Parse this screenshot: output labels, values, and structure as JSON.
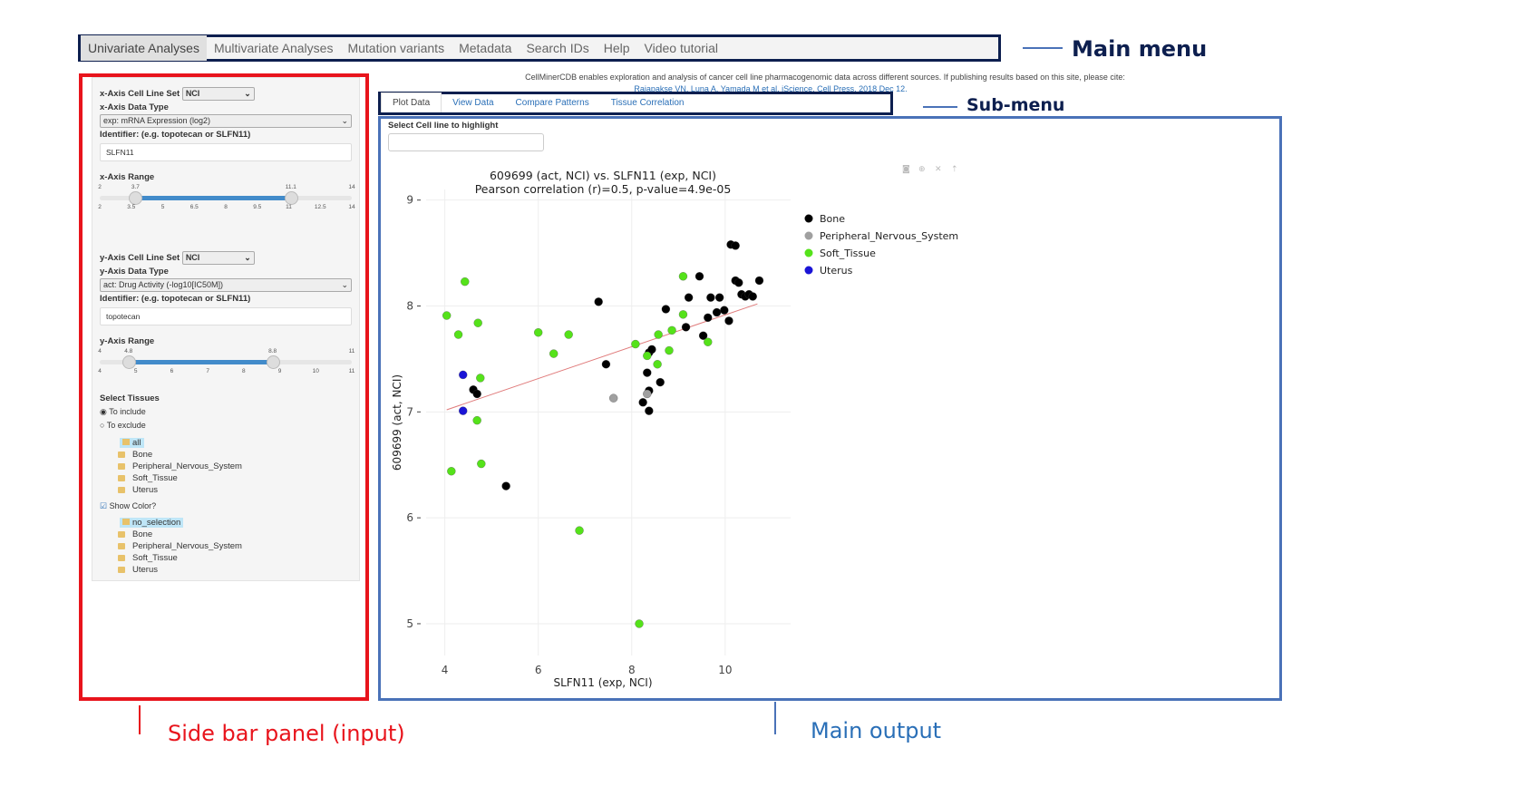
{
  "menu": {
    "items": [
      "Univariate Analyses",
      "Multivariate Analyses",
      "Mutation variants",
      "Metadata",
      "Search IDs",
      "Help",
      "Video tutorial"
    ],
    "active": 0
  },
  "annotations": {
    "main_menu": "Main menu",
    "sub_menu": "Sub-menu",
    "sidebar": "Side bar panel (input)",
    "main_output": "Main output"
  },
  "header": {
    "intro": "CellMinerCDB enables exploration and analysis of cancer cell line pharmacogenomic data across different sources. If publishing results based on this site, please cite:",
    "citation": "Rajapakse VN, Luna A, Yamada M et al. iScience, Cell Press. 2018 Dec 12."
  },
  "sidebar": {
    "x_cellset_label": "x-Axis Cell Line Set",
    "x_cellset": "NCI",
    "x_datatype_label": "x-Axis Data Type",
    "x_datatype": "exp: mRNA Expression (log2)",
    "x_identifier_label": "Identifier: (e.g. topotecan or SLFN11)",
    "x_identifier": "SLFN11",
    "x_range_label": "x-Axis Range",
    "x_range": {
      "min": 2,
      "max": 14,
      "low": 3.7,
      "high": 11.1,
      "low_label": "3.7",
      "high_label": "11.1",
      "min_label": "2",
      "max_label": "14",
      "ticks": [
        "2",
        "3.5",
        "5",
        "6.5",
        "8",
        "9.5",
        "11",
        "12.5",
        "14"
      ]
    },
    "y_cellset_label": "y-Axis Cell Line Set",
    "y_cellset": "NCI",
    "y_datatype_label": "y-Axis Data Type",
    "y_datatype": "act: Drug Activity (-log10[IC50M])",
    "y_identifier_label": "Identifier: (e.g. topotecan or SLFN11)",
    "y_identifier": "topotecan",
    "y_range_label": "y-Axis Range",
    "y_range": {
      "min": 4,
      "max": 11,
      "low": 4.8,
      "high": 8.8,
      "low_label": "4.8",
      "high_label": "8.8",
      "min_label": "4",
      "max_label": "11",
      "ticks": [
        "4",
        "5",
        "6",
        "7",
        "8",
        "9",
        "10",
        "11"
      ]
    },
    "tissues_label": "Select Tissues",
    "include_label": "To include",
    "exclude_label": "To exclude",
    "mode": "include",
    "tree1": {
      "root": "all",
      "children": [
        "Bone",
        "Peripheral_Nervous_System",
        "Soft_Tissue",
        "Uterus"
      ]
    },
    "show_color_label": "Show Color?",
    "show_color": true,
    "tree2": {
      "root": "no_selection",
      "children": [
        "Bone",
        "Peripheral_Nervous_System",
        "Soft_Tissue",
        "Uterus"
      ]
    }
  },
  "tabs": {
    "items": [
      "Plot Data",
      "View Data",
      "Compare Patterns",
      "Tissue Correlation"
    ],
    "active": 0
  },
  "highlight": {
    "label": "Select Cell line to highlight",
    "value": ""
  },
  "toolbar_icons": [
    "camera-icon",
    "zoom-icon",
    "autoscale-icon",
    "reset-icon"
  ],
  "chart_data": {
    "type": "scatter",
    "title": "609699 (act, NCI) vs. SLFN11 (exp, NCI)",
    "subtitle": "Pearson correlation (r)=0.5, p-value=4.9e-05",
    "xlabel": "SLFN11 (exp, NCI)",
    "ylabel": "609699 (act, NCI)",
    "xlim": [
      3.6,
      11.4
    ],
    "ylim": [
      4.7,
      9.1
    ],
    "xticks": [
      4,
      6,
      8,
      10
    ],
    "yticks": [
      5,
      6,
      7,
      8,
      9
    ],
    "grid": true,
    "legend_position": "right",
    "regression_line": {
      "color": "#e07b7b",
      "points": [
        [
          4.04,
          7.02
        ],
        [
          10.69,
          8.02
        ]
      ]
    },
    "series": [
      {
        "name": "Bone",
        "color": "#000000",
        "points": [
          [
            4.61,
            7.21
          ],
          [
            4.69,
            7.17
          ],
          [
            5.31,
            6.3
          ],
          [
            7.29,
            8.04
          ],
          [
            7.45,
            7.45
          ],
          [
            8.37,
            7.56
          ],
          [
            8.43,
            7.59
          ],
          [
            8.33,
            7.37
          ],
          [
            8.61,
            7.28
          ],
          [
            8.24,
            7.09
          ],
          [
            8.37,
            7.01
          ],
          [
            8.37,
            7.2
          ],
          [
            8.73,
            7.97
          ],
          [
            9.16,
            7.8
          ],
          [
            9.22,
            8.08
          ],
          [
            9.45,
            8.28
          ],
          [
            9.53,
            7.72
          ],
          [
            9.63,
            7.89
          ],
          [
            9.69,
            8.08
          ],
          [
            9.82,
            7.94
          ],
          [
            9.88,
            8.08
          ],
          [
            9.98,
            7.96
          ],
          [
            10.08,
            7.86
          ],
          [
            10.12,
            8.58
          ],
          [
            10.22,
            8.57
          ],
          [
            10.22,
            8.24
          ],
          [
            10.29,
            8.22
          ],
          [
            10.35,
            8.11
          ],
          [
            10.43,
            8.09
          ],
          [
            10.51,
            8.11
          ],
          [
            10.59,
            8.09
          ],
          [
            10.73,
            8.24
          ]
        ]
      },
      {
        "name": "Peripheral_Nervous_System",
        "color": "#a0a0a0",
        "points": [
          [
            7.61,
            7.13
          ],
          [
            8.33,
            7.17
          ]
        ]
      },
      {
        "name": "Soft_Tissue",
        "color": "#55e21a",
        "points": [
          [
            4.43,
            8.23
          ],
          [
            4.04,
            7.91
          ],
          [
            4.29,
            7.73
          ],
          [
            4.71,
            7.84
          ],
          [
            4.76,
            7.32
          ],
          [
            4.69,
            6.92
          ],
          [
            4.14,
            6.44
          ],
          [
            4.78,
            6.51
          ],
          [
            6.0,
            7.75
          ],
          [
            6.33,
            7.55
          ],
          [
            6.65,
            7.73
          ],
          [
            6.88,
            5.88
          ],
          [
            8.16,
            5.0
          ],
          [
            8.08,
            7.64
          ],
          [
            8.33,
            7.53
          ],
          [
            8.55,
            7.45
          ],
          [
            8.57,
            7.73
          ],
          [
            8.8,
            7.58
          ],
          [
            8.86,
            7.77
          ],
          [
            9.1,
            7.92
          ],
          [
            9.1,
            8.28
          ],
          [
            9.63,
            7.66
          ]
        ]
      },
      {
        "name": "Uterus",
        "color": "#1a14d6",
        "points": [
          [
            4.39,
            7.35
          ],
          [
            4.39,
            7.01
          ]
        ]
      }
    ]
  }
}
